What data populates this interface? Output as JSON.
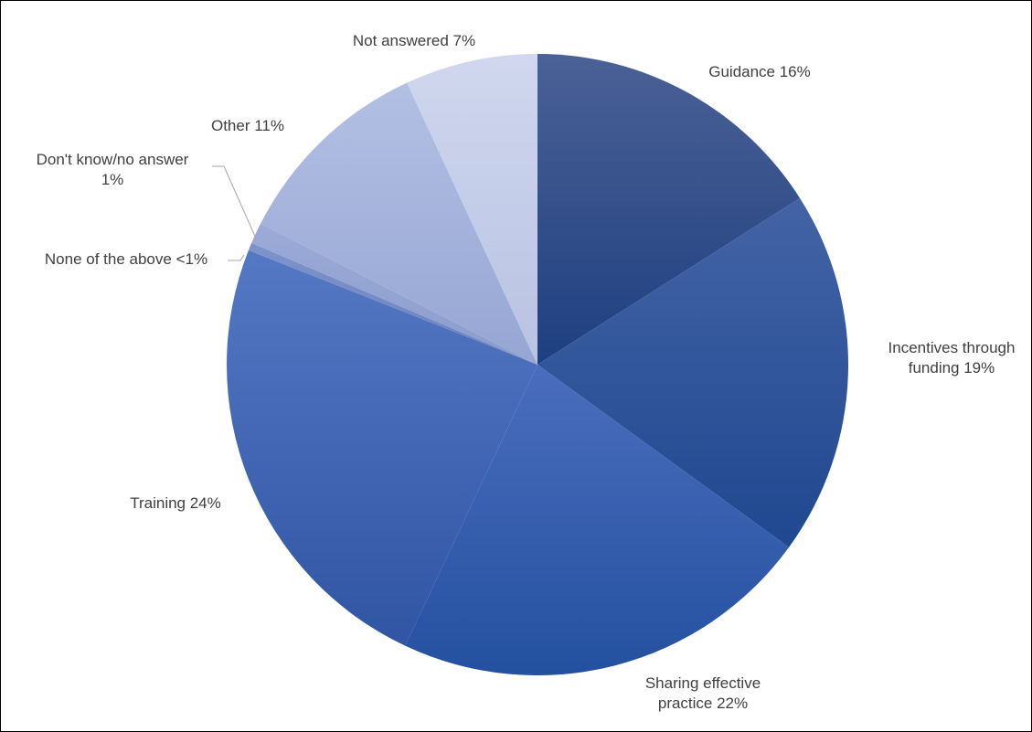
{
  "chart_data": {
    "type": "pie",
    "start_angle_deg": 0,
    "direction": "clockwise",
    "slices": [
      {
        "label_lines": [
          "Guidance 16%"
        ],
        "value": 16,
        "color_light": "#4b6196",
        "color_dark": "#1e3f80"
      },
      {
        "label_lines": [
          "Incentives through",
          "funding 19%"
        ],
        "value": 19,
        "color_light": "#4463a6",
        "color_dark": "#1f4890"
      },
      {
        "label_lines": [
          "Sharing effective",
          "practice 22%"
        ],
        "value": 22,
        "color_light": "#4a6ebd",
        "color_dark": "#2450a0"
      },
      {
        "label_lines": [
          "Training 24%"
        ],
        "value": 24,
        "color_light": "#5578c4",
        "color_dark": "#3055a3"
      },
      {
        "label_lines": [
          "None of the above <1%"
        ],
        "value": 0.4,
        "color_light": "#7f93cb",
        "color_dark": "#6a82c1"
      },
      {
        "label_lines": [
          "Don't know/no answer",
          "1%"
        ],
        "value": 1.1,
        "color_light": "#9cabd8",
        "color_dark": "#8a9ccd"
      },
      {
        "label_lines": [
          "Other 11%"
        ],
        "value": 10.6,
        "color_light": "#b3c0e4",
        "color_dark": "#96a6d3"
      },
      {
        "label_lines": [
          "Not answered 7%"
        ],
        "value": 6.9,
        "color_light": "#d0d7ee",
        "color_dark": "#b8c3e2"
      }
    ]
  }
}
